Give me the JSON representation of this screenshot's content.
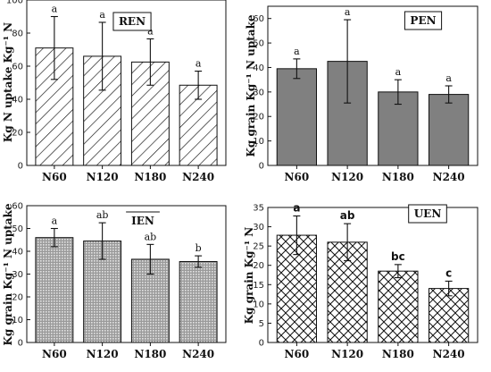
{
  "chart_data": [
    {
      "id": "ren",
      "type": "bar",
      "title": "REN",
      "categories": [
        "N60",
        "N120",
        "N180",
        "N240"
      ],
      "values": [
        71,
        66,
        62.5,
        48.5
      ],
      "errors": [
        19,
        20.5,
        14,
        8.5
      ],
      "significance": [
        "a",
        "a",
        "a",
        "a"
      ],
      "ylabel": "Kg N uptake Kg⁻¹ N",
      "ylim": [
        0,
        100
      ],
      "yticks": [
        0,
        20,
        40,
        60,
        80,
        100
      ],
      "pattern": "diagonal-hatch",
      "bold_letters": false
    },
    {
      "id": "pen",
      "type": "bar",
      "title": "PEN",
      "categories": [
        "N60",
        "N120",
        "N180",
        "N240"
      ],
      "values": [
        39.5,
        42.5,
        30,
        29
      ],
      "errors": [
        4,
        17,
        5,
        3.5
      ],
      "significance": [
        "a",
        "a",
        "a",
        "a"
      ],
      "ylabel": "Kg grain Kg⁻¹ N uptake",
      "ylim": [
        0,
        65
      ],
      "yticks": [
        0,
        10,
        20,
        30,
        40,
        50,
        60
      ],
      "pattern": "solid-gray",
      "bold_letters": false
    },
    {
      "id": "ien",
      "type": "bar",
      "title": "IEN",
      "categories": [
        "N60",
        "N120",
        "N180",
        "N240"
      ],
      "values": [
        46,
        44.5,
        36.5,
        35.5
      ],
      "errors": [
        4,
        8,
        6.5,
        2.5
      ],
      "significance": [
        "a",
        "ab",
        "ab",
        "b"
      ],
      "ylabel": "Kg grain Kg⁻¹ N uptake",
      "ylim": [
        0,
        60
      ],
      "yticks": [
        0,
        10,
        20,
        30,
        40,
        50,
        60
      ],
      "pattern": "dot-grid",
      "bold_letters": false
    },
    {
      "id": "uen",
      "type": "bar",
      "title": "UEN",
      "categories": [
        "N60",
        "N120",
        "N180",
        "N240"
      ],
      "values": [
        27.8,
        26,
        18.5,
        14
      ],
      "errors": [
        5,
        4.8,
        1.7,
        1.9
      ],
      "significance": [
        "a",
        "ab",
        "bc",
        "c"
      ],
      "ylabel": "Kg grain Kg⁻¹ N",
      "ylim": [
        0,
        35
      ],
      "yticks": [
        0,
        5,
        10,
        15,
        20,
        25,
        30,
        35
      ],
      "pattern": "crosshatch",
      "bold_letters": true
    }
  ]
}
